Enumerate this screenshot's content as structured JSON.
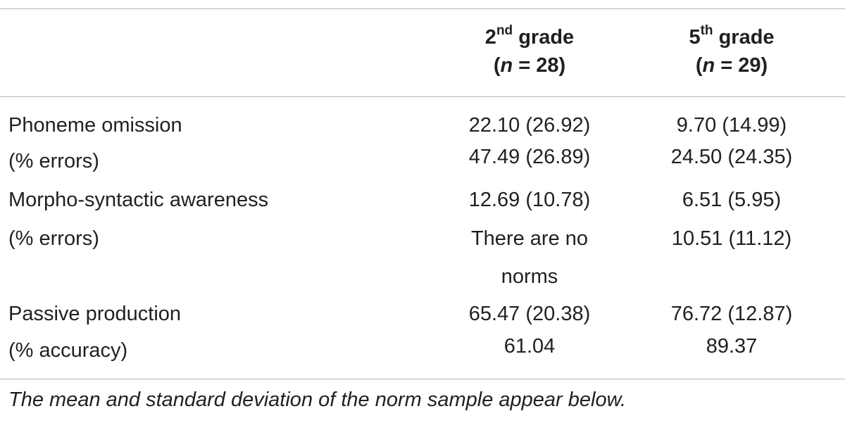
{
  "table": {
    "headers": {
      "grade2": {
        "ord": "2",
        "sup": "nd",
        "word": "grade",
        "n_var": "n",
        "n_rest": " = 28)"
      },
      "grade5": {
        "ord": "5",
        "sup": "th",
        "word": "grade",
        "n_var": "n",
        "n_rest": " = 29)"
      }
    },
    "rows": [
      {
        "label": "Phoneme omission",
        "grade2": "22.10 (26.92)",
        "grade5": "9.70 (14.99)"
      },
      {
        "label": "(% errors)",
        "grade2": "47.49 (26.89)",
        "grade5": "24.50 (24.35)"
      },
      {
        "label": "Morpho-syntactic awareness",
        "grade2": "12.69 (10.78)",
        "grade5": "6.51 (5.95)"
      },
      {
        "label": "(% errors)",
        "grade2": "There are no",
        "grade5": "10.51 (11.12)"
      },
      {
        "label": "",
        "grade2": "norms",
        "grade5": ""
      },
      {
        "label": "Passive production",
        "grade2": "65.47 (20.38)",
        "grade5": "76.72 (12.87)"
      },
      {
        "label": "(% accuracy)",
        "grade2": "61.04",
        "grade5": "89.37"
      }
    ],
    "note": "The mean and standard deviation of the norm sample appear below."
  }
}
